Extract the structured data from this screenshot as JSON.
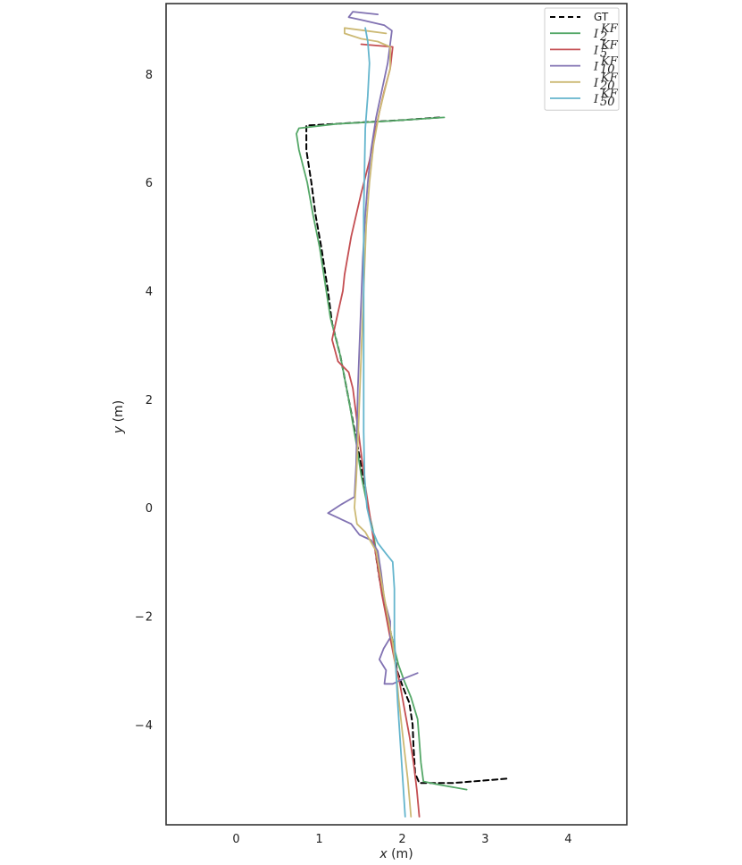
{
  "chart_data": {
    "type": "line",
    "xlabel": "x (m)",
    "ylabel": "y (m)",
    "xlim": [
      -0.85,
      4.7
    ],
    "ylim": [
      -5.85,
      9.3
    ],
    "xticks": [
      0,
      1,
      2,
      3,
      4
    ],
    "yticks": [
      -4,
      -2,
      0,
      2,
      4,
      6,
      8
    ],
    "grid": false,
    "legend": "top-right",
    "series": [
      {
        "name": "GT",
        "legend_main": "GT",
        "legend_sub": "",
        "color": "#000000",
        "dash": true,
        "points": [
          [
            3.25,
            -5.0
          ],
          [
            2.6,
            -5.08
          ],
          [
            2.2,
            -5.08
          ],
          [
            2.15,
            -4.9
          ],
          [
            2.13,
            -4.4
          ],
          [
            2.12,
            -4.0
          ],
          [
            2.08,
            -3.6
          ],
          [
            2.0,
            -3.3
          ],
          [
            1.93,
            -3.0
          ],
          [
            1.9,
            -2.6
          ],
          [
            1.84,
            -2.2
          ],
          [
            1.78,
            -1.8
          ],
          [
            1.72,
            -1.3
          ],
          [
            1.68,
            -0.9
          ],
          [
            1.65,
            -0.5
          ],
          [
            1.58,
            0.0
          ],
          [
            1.52,
            0.6
          ],
          [
            1.45,
            1.2
          ],
          [
            1.35,
            2.0
          ],
          [
            1.25,
            2.8
          ],
          [
            1.15,
            3.4
          ],
          [
            1.1,
            4.0
          ],
          [
            1.02,
            4.8
          ],
          [
            0.95,
            5.4
          ],
          [
            0.9,
            6.0
          ],
          [
            0.84,
            6.6
          ],
          [
            0.84,
            7.05
          ],
          [
            1.4,
            7.1
          ],
          [
            2.0,
            7.15
          ],
          [
            2.45,
            7.2
          ]
        ]
      },
      {
        "name": "I_2^KF",
        "legend_main": "I",
        "legend_sub": "2",
        "color": "#55a868",
        "dash": false,
        "points": [
          [
            2.77,
            -5.2
          ],
          [
            2.4,
            -5.1
          ],
          [
            2.25,
            -5.05
          ],
          [
            2.22,
            -4.7
          ],
          [
            2.2,
            -4.3
          ],
          [
            2.18,
            -3.9
          ],
          [
            2.1,
            -3.5
          ],
          [
            2.02,
            -3.2
          ],
          [
            1.95,
            -2.9
          ],
          [
            1.9,
            -2.6
          ],
          [
            1.84,
            -2.2
          ],
          [
            1.78,
            -1.7
          ],
          [
            1.72,
            -1.2
          ],
          [
            1.68,
            -0.8
          ],
          [
            1.64,
            -0.4
          ],
          [
            1.58,
            0.0
          ],
          [
            1.5,
            0.6
          ],
          [
            1.44,
            1.2
          ],
          [
            1.35,
            2.0
          ],
          [
            1.25,
            2.8
          ],
          [
            1.13,
            3.5
          ],
          [
            1.08,
            4.0
          ],
          [
            1.0,
            4.8
          ],
          [
            0.92,
            5.4
          ],
          [
            0.85,
            6.0
          ],
          [
            0.75,
            6.6
          ],
          [
            0.72,
            6.9
          ],
          [
            0.75,
            7.0
          ],
          [
            1.2,
            7.08
          ],
          [
            1.8,
            7.13
          ],
          [
            2.5,
            7.2
          ]
        ]
      },
      {
        "name": "I_5^KF",
        "legend_main": "I",
        "legend_sub": "5",
        "color": "#c44e52",
        "dash": false,
        "points": [
          [
            2.2,
            -5.7
          ],
          [
            2.17,
            -5.2
          ],
          [
            2.13,
            -4.7
          ],
          [
            2.08,
            -4.2
          ],
          [
            2.02,
            -3.7
          ],
          [
            1.96,
            -3.2
          ],
          [
            1.9,
            -2.8
          ],
          [
            1.85,
            -2.4
          ],
          [
            1.8,
            -2.0
          ],
          [
            1.75,
            -1.6
          ],
          [
            1.7,
            -1.1
          ],
          [
            1.65,
            -0.6
          ],
          [
            1.6,
            -0.1
          ],
          [
            1.55,
            0.4
          ],
          [
            1.5,
            1.0
          ],
          [
            1.45,
            1.6
          ],
          [
            1.4,
            2.2
          ],
          [
            1.35,
            2.5
          ],
          [
            1.22,
            2.7
          ],
          [
            1.15,
            3.1
          ],
          [
            1.22,
            3.6
          ],
          [
            1.28,
            4.0
          ],
          [
            1.3,
            4.3
          ],
          [
            1.38,
            5.0
          ],
          [
            1.5,
            5.8
          ],
          [
            1.6,
            6.4
          ],
          [
            1.65,
            6.8
          ],
          [
            1.72,
            7.3
          ],
          [
            1.78,
            7.7
          ],
          [
            1.85,
            8.1
          ],
          [
            1.88,
            8.5
          ],
          [
            1.5,
            8.55
          ]
        ]
      },
      {
        "name": "I_10^KF",
        "legend_main": "I",
        "legend_sub": "10",
        "color": "#8172b2",
        "dash": false,
        "points": [
          [
            2.18,
            -3.05
          ],
          [
            2.02,
            -3.15
          ],
          [
            1.88,
            -3.25
          ],
          [
            1.78,
            -3.25
          ],
          [
            1.8,
            -3.0
          ],
          [
            1.72,
            -2.8
          ],
          [
            1.77,
            -2.6
          ],
          [
            1.85,
            -2.4
          ],
          [
            1.85,
            -2.1
          ],
          [
            1.78,
            -1.7
          ],
          [
            1.74,
            -1.2
          ],
          [
            1.7,
            -0.8
          ],
          [
            1.62,
            -0.6
          ],
          [
            1.48,
            -0.5
          ],
          [
            1.38,
            -0.3
          ],
          [
            1.1,
            -0.1
          ],
          [
            1.25,
            0.05
          ],
          [
            1.42,
            0.2
          ],
          [
            1.44,
            0.8
          ],
          [
            1.45,
            1.5
          ],
          [
            1.46,
            2.2
          ],
          [
            1.48,
            3.0
          ],
          [
            1.5,
            3.8
          ],
          [
            1.52,
            4.6
          ],
          [
            1.55,
            5.4
          ],
          [
            1.58,
            6.0
          ],
          [
            1.62,
            6.6
          ],
          [
            1.68,
            7.2
          ],
          [
            1.75,
            7.7
          ],
          [
            1.82,
            8.2
          ],
          [
            1.87,
            8.8
          ],
          [
            1.78,
            8.9
          ],
          [
            1.5,
            9.0
          ],
          [
            1.35,
            9.05
          ],
          [
            1.4,
            9.15
          ],
          [
            1.7,
            9.1
          ]
        ]
      },
      {
        "name": "I_20^KF",
        "legend_main": "I",
        "legend_sub": "20",
        "color": "#ccb974",
        "dash": false,
        "points": [
          [
            2.1,
            -5.7
          ],
          [
            2.06,
            -5.0
          ],
          [
            2.0,
            -4.2
          ],
          [
            1.95,
            -3.5
          ],
          [
            1.92,
            -3.0
          ],
          [
            1.88,
            -2.5
          ],
          [
            1.82,
            -2.0
          ],
          [
            1.75,
            -1.4
          ],
          [
            1.68,
            -0.8
          ],
          [
            1.55,
            -0.45
          ],
          [
            1.45,
            -0.3
          ],
          [
            1.42,
            0.0
          ],
          [
            1.44,
            0.5
          ],
          [
            1.46,
            1.2
          ],
          [
            1.48,
            2.0
          ],
          [
            1.5,
            2.8
          ],
          [
            1.52,
            3.6
          ],
          [
            1.54,
            4.4
          ],
          [
            1.56,
            5.2
          ],
          [
            1.6,
            6.0
          ],
          [
            1.65,
            6.7
          ],
          [
            1.72,
            7.3
          ],
          [
            1.8,
            7.8
          ],
          [
            1.85,
            8.1
          ],
          [
            1.85,
            8.5
          ],
          [
            1.7,
            8.6
          ],
          [
            1.5,
            8.65
          ],
          [
            1.3,
            8.75
          ],
          [
            1.3,
            8.85
          ],
          [
            1.55,
            8.8
          ],
          [
            1.8,
            8.75
          ]
        ]
      },
      {
        "name": "I_50^KF",
        "legend_main": "I",
        "legend_sub": "50",
        "color": "#64b5cd",
        "dash": false,
        "points": [
          [
            2.03,
            -5.7
          ],
          [
            2.0,
            -5.0
          ],
          [
            1.97,
            -4.3
          ],
          [
            1.94,
            -3.6
          ],
          [
            1.92,
            -3.0
          ],
          [
            1.9,
            -2.4
          ],
          [
            1.9,
            -1.9
          ],
          [
            1.9,
            -1.5
          ],
          [
            1.88,
            -1.0
          ],
          [
            1.8,
            -0.85
          ],
          [
            1.7,
            -0.65
          ],
          [
            1.63,
            -0.4
          ],
          [
            1.57,
            0.0
          ],
          [
            1.54,
            0.6
          ],
          [
            1.53,
            1.4
          ],
          [
            1.53,
            2.2
          ],
          [
            1.53,
            3.0
          ],
          [
            1.53,
            3.8
          ],
          [
            1.53,
            4.6
          ],
          [
            1.53,
            5.4
          ],
          [
            1.54,
            6.2
          ],
          [
            1.55,
            7.0
          ],
          [
            1.58,
            7.6
          ],
          [
            1.6,
            8.2
          ],
          [
            1.58,
            8.6
          ],
          [
            1.55,
            8.85
          ]
        ]
      }
    ]
  }
}
